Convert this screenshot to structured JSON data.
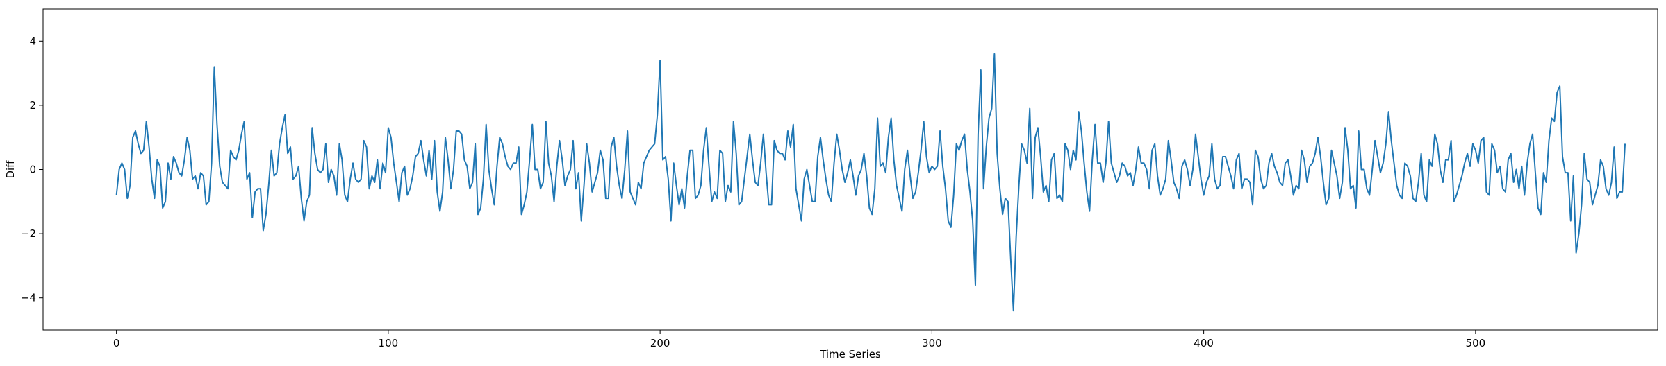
{
  "chart_data": {
    "type": "line",
    "title": "",
    "xlabel": "Time Series",
    "ylabel": "Diff",
    "xlim": [
      -27,
      567
    ],
    "ylim": [
      -5,
      5
    ],
    "xticks": [
      0,
      100,
      200,
      300,
      400,
      500
    ],
    "yticks": [
      -4,
      -2,
      0,
      2,
      4
    ],
    "grid": false,
    "legend": "none",
    "line_color": "#1f77b4",
    "series": [
      {
        "values": [
          -0.8,
          0.0,
          0.2,
          0.0,
          -0.9,
          -0.5,
          1.0,
          1.2,
          0.8,
          0.5,
          0.6,
          1.5,
          0.7,
          -0.3,
          -0.9,
          0.3,
          0.1,
          -1.2,
          -1.0,
          0.2,
          -0.3,
          0.4,
          0.2,
          -0.1,
          -0.2,
          0.3,
          1.0,
          0.6,
          -0.3,
          -0.2,
          -0.6,
          -0.1,
          -0.2,
          -1.1,
          -1.0,
          0.2,
          3.2,
          1.4,
          0.1,
          -0.4,
          -0.5,
          -0.6,
          0.6,
          0.4,
          0.3,
          0.6,
          1.1,
          1.5,
          -0.3,
          -0.1,
          -1.5,
          -0.7,
          -0.6,
          -0.6,
          -1.9,
          -1.4,
          -0.5,
          0.6,
          -0.2,
          -0.1,
          0.8,
          1.3,
          1.7,
          0.5,
          0.7,
          -0.3,
          -0.2,
          0.1,
          -0.9,
          -1.6,
          -1.0,
          -0.8,
          1.3,
          0.5,
          0.0,
          -0.1,
          0.0,
          0.8,
          -0.4,
          0.0,
          -0.2,
          -0.8,
          0.8,
          0.3,
          -0.8,
          -1.0,
          -0.3,
          0.2,
          -0.3,
          -0.4,
          -0.3,
          0.9,
          0.7,
          -0.6,
          -0.2,
          -0.4,
          0.3,
          -0.6,
          0.2,
          -0.1,
          1.3,
          1.0,
          0.2,
          -0.4,
          -1.0,
          -0.1,
          0.1,
          -0.8,
          -0.6,
          -0.2,
          0.4,
          0.5,
          0.9,
          0.3,
          -0.2,
          0.6,
          -0.3,
          0.9,
          -0.7,
          -1.3,
          -0.7,
          1.0,
          0.3,
          -0.6,
          0.0,
          1.2,
          1.2,
          1.1,
          0.3,
          0.1,
          -0.6,
          -0.4,
          0.8,
          -1.4,
          -1.2,
          -0.3,
          1.4,
          0.0,
          -0.6,
          -1.1,
          0.1,
          1.0,
          0.8,
          0.4,
          0.1,
          0.0,
          0.2,
          0.2,
          0.7,
          -1.4,
          -1.1,
          -0.7,
          0.3,
          1.4,
          0.0,
          0.0,
          -0.6,
          -0.4,
          1.5,
          0.2,
          -0.2,
          -1.0,
          0.1,
          0.9,
          0.3,
          -0.5,
          -0.2,
          0.0,
          0.9,
          -0.6,
          -0.1,
          -1.6,
          -0.5,
          0.8,
          0.2,
          -0.7,
          -0.4,
          -0.1,
          0.6,
          0.3,
          -0.9,
          -0.9,
          0.7,
          1.0,
          0.1,
          -0.5,
          -0.9,
          0.0,
          1.2,
          -0.7,
          -0.9,
          -1.1,
          -0.4,
          -0.6,
          0.2,
          0.4,
          0.6,
          0.7,
          0.8,
          1.7,
          3.4,
          0.3,
          0.4,
          -0.3,
          -1.6,
          0.2,
          -0.5,
          -1.1,
          -0.6,
          -1.2,
          -0.2,
          0.6,
          0.6,
          -0.9,
          -0.8,
          -0.5,
          0.6,
          1.3,
          0.1,
          -1.0,
          -0.7,
          -0.9,
          0.6,
          0.5,
          -1.0,
          -0.5,
          -0.7,
          1.5,
          0.5,
          -1.1,
          -1.0,
          -0.3,
          0.4,
          1.1,
          0.3,
          -0.4,
          -0.5,
          0.2,
          1.1,
          -0.1,
          -1.1,
          -1.1,
          0.9,
          0.6,
          0.5,
          0.5,
          0.3,
          1.2,
          0.7,
          1.4,
          -0.6,
          -1.1,
          -1.6,
          -0.3,
          0.0,
          -0.5,
          -1.0,
          -1.0,
          0.4,
          1.0,
          0.3,
          -0.3,
          -0.8,
          -1.0,
          0.2,
          1.1,
          0.6,
          0.0,
          -0.4,
          -0.1,
          0.3,
          -0.2,
          -0.8,
          -0.2,
          0.0,
          0.5,
          -0.2,
          -1.2,
          -1.4,
          -0.6,
          1.6,
          0.1,
          0.2,
          -0.1,
          1.0,
          1.6,
          0.3,
          -0.5,
          -0.9,
          -1.3,
          0.0,
          0.6,
          -0.2,
          -0.9,
          -0.7,
          -0.1,
          0.6,
          1.5,
          0.4,
          -0.1,
          0.1,
          0.0,
          0.1,
          1.2,
          0.1,
          -0.6,
          -1.6,
          -1.8,
          -0.8,
          0.8,
          0.6,
          0.9,
          1.1,
          0.0,
          -0.7,
          -1.6,
          -3.6,
          1.1,
          3.1,
          -0.6,
          0.7,
          1.6,
          1.9,
          3.6,
          0.5,
          -0.6,
          -1.4,
          -0.9,
          -1.0,
          -2.8,
          -4.4,
          -2.1,
          -0.5,
          0.8,
          0.6,
          0.2,
          1.9,
          -0.9,
          1.0,
          1.3,
          0.4,
          -0.7,
          -0.5,
          -1.0,
          0.3,
          0.5,
          -0.9,
          -0.8,
          -1.0,
          0.8,
          0.6,
          0.0,
          0.6,
          0.3,
          1.8,
          1.2,
          0.2,
          -0.7,
          -1.3,
          0.3,
          1.4,
          0.2,
          0.2,
          -0.4,
          0.2,
          1.5,
          0.2,
          -0.1,
          -0.4,
          -0.2,
          0.2,
          0.1,
          -0.2,
          -0.1,
          -0.5,
          0.0,
          0.7,
          0.2,
          0.2,
          0.0,
          -0.6,
          0.6,
          0.8,
          -0.2,
          -0.8,
          -0.6,
          -0.3,
          0.9,
          0.3,
          -0.4,
          -0.6,
          -0.9,
          0.1,
          0.3,
          0.0,
          -0.5,
          0.0,
          1.1,
          0.4,
          -0.3,
          -0.8,
          -0.4,
          -0.2,
          0.8,
          -0.3,
          -0.6,
          -0.5,
          0.4,
          0.4,
          0.1,
          -0.2,
          -0.6,
          0.3,
          0.5,
          -0.6,
          -0.3,
          -0.3,
          -0.4,
          -1.1,
          0.6,
          0.4,
          -0.3,
          -0.6,
          -0.5,
          0.2,
          0.5,
          0.1,
          -0.1,
          -0.4,
          -0.5,
          0.2,
          0.3,
          -0.2,
          -0.8,
          -0.5,
          -0.6,
          0.6,
          0.3,
          -0.4,
          0.1,
          0.2,
          0.5,
          1.0,
          0.4,
          -0.4,
          -1.1,
          -0.9,
          0.6,
          0.2,
          -0.2,
          -0.9,
          -0.4,
          1.3,
          0.6,
          -0.6,
          -0.5,
          -1.2,
          1.2,
          0.0,
          0.0,
          -0.6,
          -0.8,
          0.0,
          0.9,
          0.4,
          -0.1,
          0.2,
          0.8,
          1.8,
          0.9,
          0.2,
          -0.5,
          -0.8,
          -0.9,
          0.2,
          0.1,
          -0.2,
          -0.9,
          -1.0,
          -0.4,
          0.5,
          -0.8,
          -1.0,
          0.3,
          0.1,
          1.1,
          0.8,
          0.0,
          -0.4,
          0.3,
          0.3,
          0.9,
          -1.0,
          -0.8,
          -0.5,
          -0.2,
          0.2,
          0.5,
          0.1,
          0.8,
          0.6,
          0.2,
          0.9,
          1.0,
          -0.7,
          -0.8,
          0.8,
          0.6,
          -0.1,
          0.1,
          -0.6,
          -0.7,
          0.3,
          0.5,
          -0.4,
          0.0,
          -0.6,
          0.1,
          -0.8,
          0.2,
          0.8,
          1.1,
          -0.1,
          -1.2,
          -1.4,
          -0.1,
          -0.4,
          0.9,
          1.6,
          1.5,
          2.4,
          2.6,
          0.4,
          -0.1,
          -0.1,
          -1.6,
          -0.2,
          -2.6,
          -2.0,
          -1.1,
          0.5,
          -0.3,
          -0.4,
          -1.1,
          -0.8,
          -0.5,
          0.3,
          0.1,
          -0.6,
          -0.8,
          -0.4,
          0.7,
          -0.9,
          -0.7,
          -0.7,
          0.8
        ]
      }
    ]
  }
}
